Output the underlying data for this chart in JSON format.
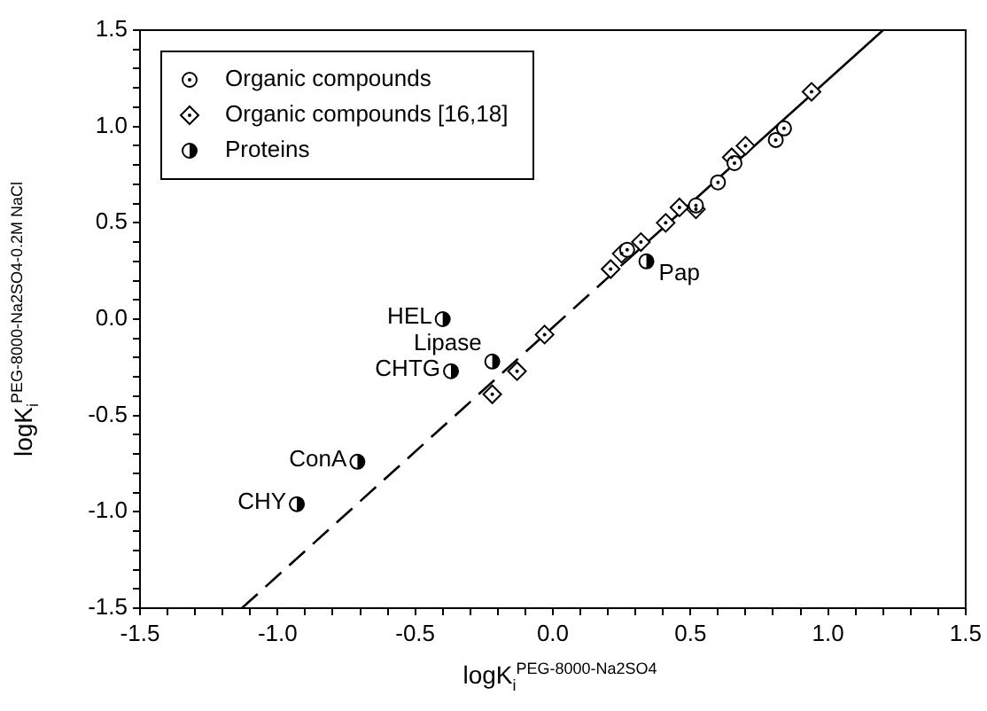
{
  "chart_data": {
    "type": "scatter",
    "xlabel": "logK$_{i}$$^{PEG-8000-Na2SO4}$",
    "ylabel": "logK$_{i}$$^{PEG-8000-Na2SO4-0.2M NaCl}$",
    "xlim": [
      -1.5,
      1.5
    ],
    "ylim": [
      -1.5,
      1.5
    ],
    "xticks": [
      -1.5,
      {
        "value": -1.4,
        "label": null
      },
      {
        "value": -1.3,
        "label": null
      },
      {
        "value": -1.2,
        "label": null
      },
      {
        "value": -1.1,
        "label": null
      },
      {
        "value": -1.0,
        "label": "-1.0"
      },
      {
        "value": -0.9,
        "label": null
      },
      {
        "value": -0.8,
        "label": null
      },
      {
        "value": -0.7,
        "label": null
      },
      {
        "value": -0.6,
        "label": null
      },
      -0.5,
      {
        "value": -0.4,
        "label": null
      },
      {
        "value": -0.3,
        "label": null
      },
      {
        "value": -0.2,
        "label": null
      },
      {
        "value": -0.1,
        "label": null
      },
      {
        "value": 0,
        "label": "0.0"
      },
      {
        "value": 0.1,
        "label": null
      },
      {
        "value": 0.2,
        "label": null
      },
      {
        "value": 0.3,
        "label": null
      },
      {
        "value": 0.4,
        "label": null
      },
      0.5,
      {
        "value": 0.6,
        "label": null
      },
      {
        "value": 0.7,
        "label": null
      },
      {
        "value": 0.8,
        "label": null
      },
      {
        "value": 0.9,
        "label": null
      },
      {
        "value": 1.0,
        "label": "1.0"
      },
      {
        "value": 1.1,
        "label": null
      },
      {
        "value": 1.2,
        "label": null
      },
      {
        "value": 1.3,
        "label": null
      },
      {
        "value": 1.4,
        "label": null
      },
      1.5
    ],
    "yticks": [
      -1.5,
      {
        "value": -1.4,
        "label": null
      },
      {
        "value": -1.3,
        "label": null
      },
      {
        "value": -1.2,
        "label": null
      },
      {
        "value": -1.1,
        "label": null
      },
      {
        "value": -1.0,
        "label": "-1.0"
      },
      {
        "value": -0.9,
        "label": null
      },
      {
        "value": -0.8,
        "label": null
      },
      {
        "value": -0.7,
        "label": null
      },
      {
        "value": -0.6,
        "label": null
      },
      -0.5,
      {
        "value": -0.4,
        "label": null
      },
      {
        "value": -0.3,
        "label": null
      },
      {
        "value": -0.2,
        "label": null
      },
      {
        "value": -0.1,
        "label": null
      },
      {
        "value": 0,
        "label": "0.0"
      },
      {
        "value": 0.1,
        "label": null
      },
      {
        "value": 0.2,
        "label": null
      },
      {
        "value": 0.3,
        "label": null
      },
      {
        "value": 0.4,
        "label": null
      },
      0.5,
      {
        "value": 0.6,
        "label": null
      },
      {
        "value": 0.7,
        "label": null
      },
      {
        "value": 0.8,
        "label": null
      },
      {
        "value": 0.9,
        "label": null
      },
      {
        "value": 1.0,
        "label": "1.0"
      },
      {
        "value": 1.1,
        "label": null
      },
      {
        "value": 1.2,
        "label": null
      },
      {
        "value": 1.3,
        "label": null
      },
      {
        "value": 1.4,
        "label": null
      },
      1.5
    ],
    "grid": false,
    "legend": "top left",
    "series": [
      {
        "name": "Organic compounds",
        "color": "#000000",
        "marker": "circle",
        "x": [
          0.27,
          0.52,
          0.6,
          0.66,
          0.81,
          0.84
        ],
        "values": [
          0.36,
          0.59,
          0.71,
          0.81,
          0.93,
          0.99
        ]
      },
      {
        "name": "Organic compounds [16,18]",
        "color": "#000000",
        "marker": "diamond",
        "x": [
          -0.22,
          -0.13,
          -0.03,
          0.21,
          0.25,
          0.32,
          0.41,
          0.46,
          0.52,
          0.65,
          0.7,
          0.94
        ],
        "values": [
          -0.39,
          -0.27,
          -0.08,
          0.26,
          0.34,
          0.4,
          0.5,
          0.58,
          0.57,
          0.84,
          0.9,
          1.18
        ]
      },
      {
        "name": "Proteins",
        "color": "#000000",
        "marker": "circle",
        "x": [
          -0.4,
          -0.37,
          -0.71,
          -0.93,
          -0.22,
          0.34
        ],
        "values": [
          0.0,
          -0.27,
          -0.74,
          -0.96,
          -0.22,
          0.3
        ],
        "value_labels": [
          "HEL",
          "CHTG",
          "ConA",
          "CHY",
          "Lipase",
          "Pap"
        ]
      },
      {
        "type": "line",
        "color": "#000000",
        "line_style": "dashed",
        "marker": "none",
        "x": [
          -1.13,
          0.25
        ],
        "values": [
          -1.5,
          0.28
        ]
      },
      {
        "type": "line",
        "color": "#000000",
        "line_style": "solid",
        "marker": "none",
        "x": [
          0.25,
          1.2
        ],
        "values": [
          0.28,
          1.5
        ]
      }
    ]
  }
}
